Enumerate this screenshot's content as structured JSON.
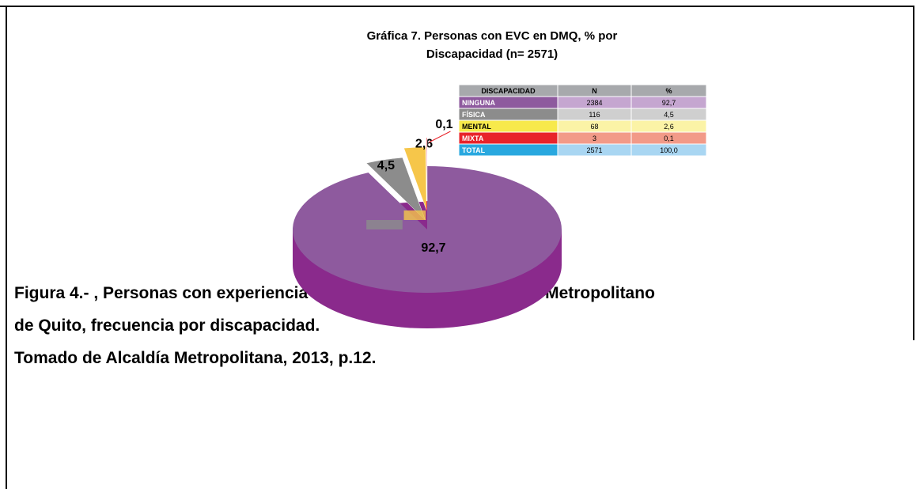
{
  "chart_data": {
    "type": "pie",
    "title": [
      "Gráfica 7. Personas con EVC en DMQ, % por",
      "Discapacidad (n= 2571)"
    ],
    "categories": [
      "NINGUNA",
      "FÍSICA",
      "MENTAL",
      "MIXTA"
    ],
    "values": [
      92.7,
      4.5,
      2.6,
      0.1
    ],
    "value_labels": [
      "92,7",
      "4,5",
      "2,6",
      "0,1"
    ],
    "colors": [
      "#8e5a9e",
      "#8c8c8c",
      "#f6c64a",
      "#e8232a"
    ],
    "table": {
      "header": [
        "DISCAPACIDAD",
        "N",
        "%"
      ],
      "rows": [
        [
          "NINGUNA",
          "2384",
          "92,7"
        ],
        [
          "FÍSICA",
          "116",
          "4,5"
        ],
        [
          "MENTAL",
          "68",
          "2,6"
        ],
        [
          "MIXTA",
          "3",
          "0,1"
        ],
        [
          "TOTAL",
          "2571",
          "100,0"
        ]
      ]
    }
  },
  "caption": [
    "Figura 4.- , Personas con experiencia de vida en calle en el Distrito Metropolitano",
    "de Quito, frecuencia por discapacidad.",
    "Tomado de Alcaldía Metropolitana, 2013, p.12."
  ]
}
